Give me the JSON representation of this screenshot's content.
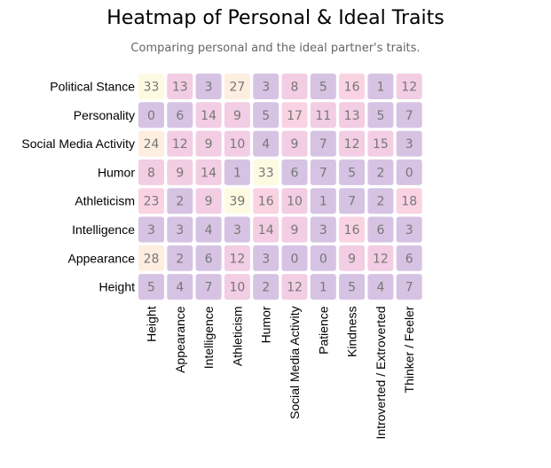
{
  "chart_data": {
    "type": "heatmap",
    "title": "Heatmap of Personal & Ideal Traits",
    "subtitle": "Comparing personal and the ideal partner's traits.",
    "rows": [
      "Political Stance",
      "Personality",
      "Social Media Activity",
      "Humor",
      "Athleticism",
      "Intelligence",
      "Appearance",
      "Height"
    ],
    "columns": [
      "Height",
      "Appearance",
      "Intelligence",
      "Athleticism",
      "Humor",
      "Social Media Activity",
      "Patience",
      "Kindness",
      "Introverted / Extroverted",
      "Thinker / Feeler"
    ],
    "values": [
      [
        33,
        13,
        3,
        27,
        3,
        8,
        5,
        16,
        1,
        12
      ],
      [
        0,
        6,
        14,
        9,
        5,
        17,
        11,
        13,
        5,
        7
      ],
      [
        24,
        12,
        9,
        10,
        4,
        9,
        7,
        12,
        15,
        3
      ],
      [
        8,
        9,
        14,
        1,
        33,
        6,
        7,
        5,
        2,
        0
      ],
      [
        23,
        2,
        9,
        39,
        16,
        10,
        1,
        7,
        2,
        18
      ],
      [
        3,
        3,
        4,
        3,
        14,
        9,
        3,
        16,
        6,
        3
      ],
      [
        28,
        2,
        6,
        12,
        3,
        0,
        0,
        9,
        12,
        6
      ],
      [
        5,
        4,
        7,
        10,
        2,
        12,
        1,
        5,
        4,
        7
      ]
    ],
    "color_scale": [
      "#d6c3e3",
      "#f2cde3",
      "#fad3e2",
      "#fdeee0",
      "#fdfae2"
    ]
  }
}
